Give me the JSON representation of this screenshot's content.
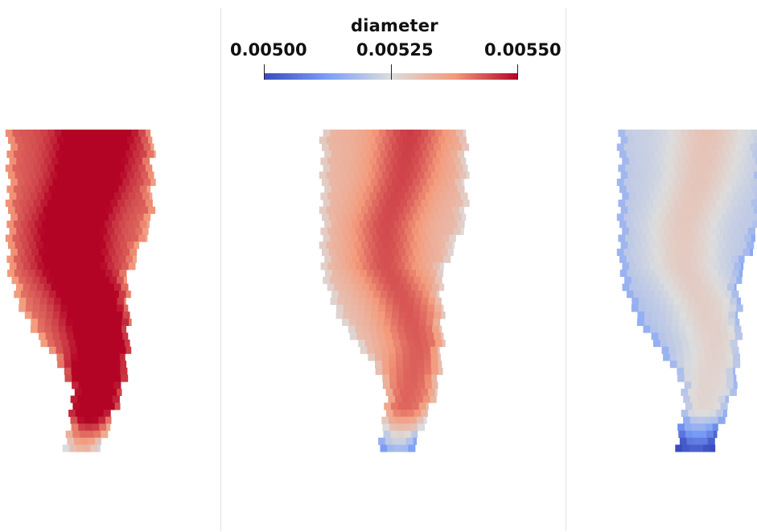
{
  "colorbar": {
    "title": "diameter",
    "min_label": "0.00500",
    "mid_label": "0.00525",
    "max_label": "0.00550",
    "min": 0.005,
    "max": 0.0055,
    "colormap": "coolwarm",
    "low_color": "#3b4cc0",
    "mid_color": "#dddddd",
    "high_color": "#b40426"
  },
  "panels": [
    {
      "name": "left",
      "dominant": "high"
    },
    {
      "name": "center",
      "dominant": "mid"
    },
    {
      "name": "right",
      "dominant": "low"
    }
  ]
}
